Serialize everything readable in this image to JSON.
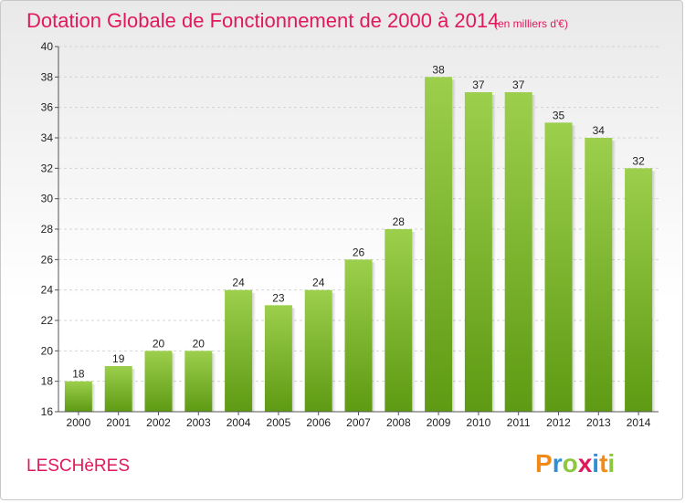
{
  "chart_data": {
    "type": "bar",
    "title": "Dotation Globale de Fonctionnement de 2000 à 2014",
    "unit": "(en milliers d'€)",
    "categories": [
      "2000",
      "2001",
      "2002",
      "2003",
      "2004",
      "2005",
      "2006",
      "2007",
      "2008",
      "2009",
      "2010",
      "2011",
      "2012",
      "2013",
      "2014"
    ],
    "values": [
      18,
      19,
      20,
      20,
      24,
      23,
      24,
      26,
      28,
      38,
      37,
      37,
      35,
      34,
      32
    ],
    "ylim": [
      16,
      40
    ],
    "yticks": [
      16,
      18,
      20,
      22,
      24,
      26,
      28,
      30,
      32,
      34,
      36,
      38,
      40
    ],
    "grid": true,
    "legend": "none"
  },
  "footer": {
    "place_name": "LESCHèRES",
    "logo_text": "Proxiti"
  },
  "colors": {
    "title": "#e0195a",
    "bar_top": "#9ccf4c",
    "bar_bottom": "#5e9a13",
    "grid": "#d4d4d4",
    "axis": "#555555"
  }
}
